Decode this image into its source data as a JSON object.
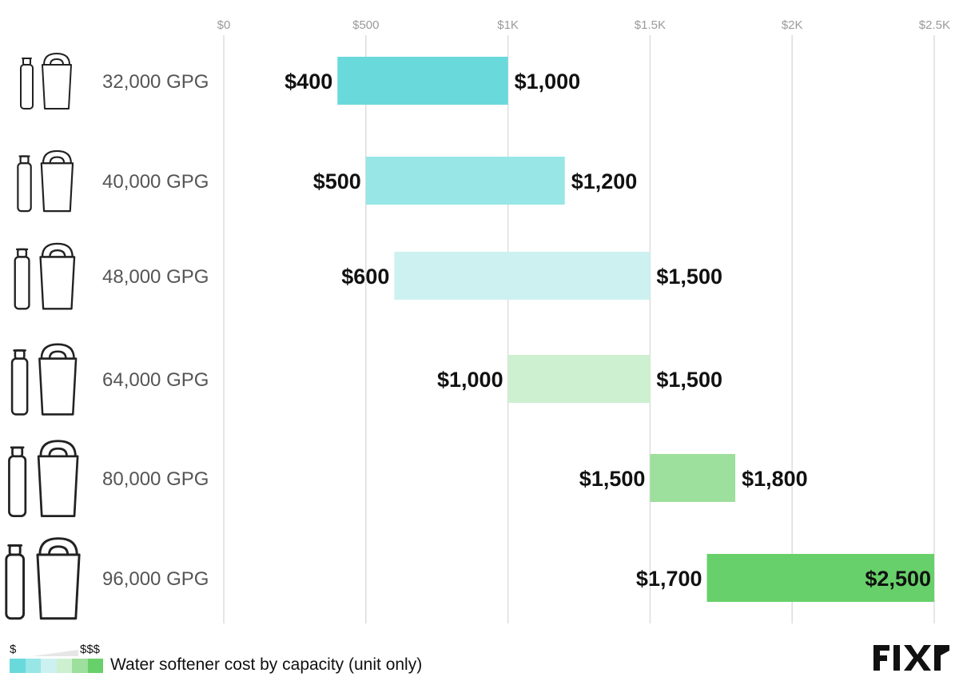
{
  "chart_data": {
    "type": "bar",
    "subtype": "floating-range-horizontal",
    "categories": [
      "32,000 GPG",
      "40,000 GPG",
      "48,000 GPG",
      "64,000 GPG",
      "80,000 GPG",
      "96,000 GPG"
    ],
    "ranges": [
      {
        "low": 400,
        "high": 1000,
        "low_label": "$400",
        "high_label": "$1,000",
        "color": "#6ad9dc"
      },
      {
        "low": 500,
        "high": 1200,
        "low_label": "$500",
        "high_label": "$1,200",
        "color": "#98e6e6"
      },
      {
        "low": 600,
        "high": 1500,
        "low_label": "$600",
        "high_label": "$1,500",
        "color": "#cdf1f1"
      },
      {
        "low": 1000,
        "high": 1500,
        "low_label": "$1,000",
        "high_label": "$1,500",
        "color": "#cdf0d0"
      },
      {
        "low": 1500,
        "high": 1800,
        "low_label": "$1,500",
        "high_label": "$1,800",
        "color": "#9ddf9c"
      },
      {
        "low": 1700,
        "high": 2500,
        "low_label": "$1,700",
        "high_label": "$2,500",
        "color": "#68d06a"
      }
    ],
    "x_ticks": [
      0,
      500,
      1000,
      1500,
      2000,
      2500
    ],
    "x_tick_labels": [
      "$0",
      "$500",
      "$1K",
      "$1.5K",
      "$2K",
      "$2.5K"
    ],
    "xlim": [
      0,
      2500
    ],
    "grid": true,
    "legend": {
      "low_label": "$",
      "high_label": "$$$",
      "caption": "Water softener cost by capacity (unit only)",
      "colors": [
        "#6ad9dc",
        "#98e6e6",
        "#cdf1f1",
        "#cdf0d0",
        "#9ddf9c",
        "#68d06a"
      ],
      "placement": "bottom-left"
    },
    "icons": [
      "water-softener-icon",
      "water-softener-icon",
      "water-softener-icon",
      "water-softener-icon",
      "water-softener-icon",
      "water-softener-icon"
    ]
  },
  "brand": {
    "logo_text": "FIXR",
    "logo_color": "#111111"
  }
}
